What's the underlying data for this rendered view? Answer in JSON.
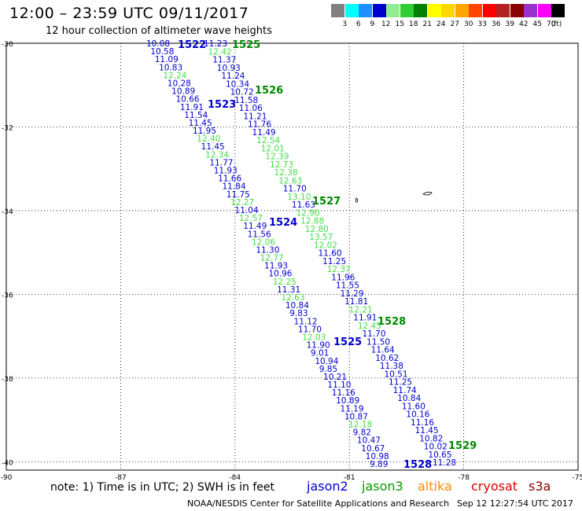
{
  "header": {
    "title": "12:00 – 23:59 UTC 09/11/2017",
    "subtitle": "12 hour collection of altimeter wave heights"
  },
  "colorbar": {
    "unit": "(ft)",
    "swatches": [
      "#808080",
      "#00ffff",
      "#1e90ff",
      "#0000cd",
      "#90ee90",
      "#32cd32",
      "#008000",
      "#ffff00",
      "#ffd700",
      "#ffa500",
      "#ff4500",
      "#ff0000",
      "#b22222",
      "#8b0000",
      "#9932cc",
      "#ff00ff",
      "#000000"
    ],
    "labels": [
      "3",
      "6",
      "9",
      "12",
      "15",
      "18",
      "21",
      "24",
      "27",
      "30",
      "33",
      "36",
      "39",
      "42",
      "45",
      "70"
    ]
  },
  "colors": {
    "jason2": "#0000cc",
    "jason3": "#33cc33",
    "jason3_dark": "#008800",
    "altika": "#ff8800",
    "cryosat": "#dd0000",
    "s3a": "#880000"
  },
  "axes": {
    "lat_labels": [
      "-30",
      "-32",
      "-34",
      "-36",
      "-38",
      "-40"
    ],
    "lat_values": [
      -30,
      -32,
      -34,
      -36,
      -38,
      -40
    ],
    "lon_labels": [
      "-90",
      "-87",
      "-84",
      "-81",
      "-78",
      "-75"
    ],
    "lon_values": [
      -90,
      -87,
      -84,
      -81,
      -78,
      -75
    ]
  },
  "tracks": [
    {
      "satellite": "jason2",
      "pass": "1522",
      "values": [
        "10.08",
        "10.58",
        "11.09",
        "10.83",
        "12.24",
        "10.28",
        "10.89",
        "10.66",
        "11.91",
        "11.54",
        "11.45",
        "11.95",
        "12.40",
        "11.45",
        "12.34",
        "11.77",
        "11.93",
        "11.66",
        "11.84",
        "11.75",
        "12.27",
        "11.04",
        "12.57",
        "11.49",
        "11.56",
        "12.06",
        "11.30",
        "12.77",
        "11.93",
        "10.96",
        "12.25",
        "11.31",
        "12.63",
        "10.84",
        "9.83",
        "11.12",
        "11.70",
        "12.03",
        "11.90",
        "9.01",
        "10.94",
        "9.85",
        "10.21",
        "11.10",
        "11.16",
        "10.89",
        "11.19",
        "10.87",
        "12.18",
        "9.82",
        "10.47",
        "10.67",
        "10.98",
        "9.89"
      ],
      "colors": [
        "b",
        "b",
        "b",
        "b",
        "g",
        "b",
        "b",
        "b",
        "b",
        "b",
        "b",
        "b",
        "g",
        "b",
        "g",
        "b",
        "b",
        "b",
        "b",
        "b",
        "g",
        "b",
        "g",
        "b",
        "b",
        "g",
        "b",
        "g",
        "b",
        "b",
        "g",
        "b",
        "g",
        "b",
        "b",
        "b",
        "b",
        "g",
        "b",
        "b",
        "b",
        "b",
        "b",
        "b",
        "b",
        "b",
        "b",
        "b",
        "g",
        "b",
        "b",
        "b",
        "b",
        "b"
      ]
    },
    {
      "satellite": "jason3",
      "pass": "1525",
      "values": [
        "11.23",
        "12.42",
        "11.37",
        "10.93",
        "11.24",
        "10.34",
        "10.72",
        "11.58",
        "11.06",
        "11.21",
        "11.76",
        "11.49",
        "12.54",
        "12.01",
        "12.39",
        "12.73",
        "12.38",
        "12.63",
        "11.70",
        "13.10",
        "11.63",
        "12.90",
        "12.88",
        "12.80",
        "13.57",
        "12.02",
        "11.60",
        "11.25",
        "12.37",
        "11.96",
        "11.55",
        "11.29",
        "11.81",
        "12.21",
        "11.91",
        "12.45",
        "11.70",
        "11.50",
        "11.64",
        "10.62",
        "11.38",
        "10.51",
        "11.25",
        "11.74",
        "10.84",
        "11.60",
        "10.16",
        "11.16",
        "11.45",
        "10.82",
        "10.02",
        "10.65",
        "11.28"
      ],
      "colors": [
        "b",
        "g",
        "b",
        "b",
        "b",
        "b",
        "b",
        "b",
        "b",
        "b",
        "b",
        "b",
        "g",
        "g",
        "g",
        "g",
        "g",
        "g",
        "b",
        "g",
        "b",
        "g",
        "g",
        "g",
        "g",
        "g",
        "b",
        "b",
        "g",
        "b",
        "b",
        "b",
        "b",
        "g",
        "b",
        "g",
        "b",
        "b",
        "b",
        "b",
        "b",
        "b",
        "b",
        "b",
        "b",
        "b",
        "b",
        "b",
        "b",
        "b",
        "b",
        "b",
        "b"
      ]
    }
  ],
  "pass_labels": [
    {
      "text": "1522",
      "sat": "jason2"
    },
    {
      "text": "1525",
      "sat": "jason3"
    },
    {
      "text": "1526",
      "sat": "jason3"
    },
    {
      "text": "1523",
      "sat": "jason2"
    },
    {
      "text": "1527",
      "sat": "jason3"
    },
    {
      "text": "1524",
      "sat": "jason2"
    },
    {
      "text": "1528",
      "sat": "jason3"
    },
    {
      "text": "1525",
      "sat": "jason2"
    },
    {
      "text": "1529",
      "sat": "jason3"
    },
    {
      "text": "1528",
      "sat": "jason2"
    }
  ],
  "note": "note: 1) Time is in UTC; 2) SWH is in feet",
  "legend": [
    {
      "label": "jason2",
      "color": "#0000cc"
    },
    {
      "label": "jason3",
      "color": "#009900"
    },
    {
      "label": "altika",
      "color": "#ff8800"
    },
    {
      "label": "cryosat",
      "color": "#dd0000"
    },
    {
      "label": "s3a",
      "color": "#880000"
    }
  ],
  "footer": {
    "left": "NOAA/NESDIS Center for Satellite Applications and Research",
    "right": "Sep 12 12:27:54 UTC 2017"
  }
}
